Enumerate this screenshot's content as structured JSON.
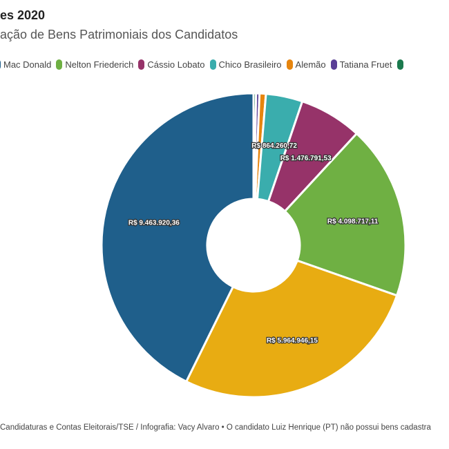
{
  "header": {
    "title": "es 2020",
    "subtitle": "ação de Bens Patrimoniais dos Candidatos"
  },
  "chart_data": {
    "type": "pie",
    "donut": true,
    "title": "es 2020",
    "subtitle": "ação de Bens Patrimoniais dos Candidatos",
    "legend_position": "top",
    "series": [
      {
        "name": "",
        "value": 60000,
        "color": "#1b7a4e",
        "label": ""
      },
      {
        "name": "Tatiana Fruet",
        "value": 80000,
        "color": "#5a3f96",
        "label": ""
      },
      {
        "name": "Alemão",
        "value": 150000,
        "color": "#e6850e",
        "label": ""
      },
      {
        "name": "Chico Brasileiro",
        "value": 864260.72,
        "color": "#3aadad",
        "label": "R$ 864.260,72"
      },
      {
        "name": "Cássio Lobato",
        "value": 1476791.53,
        "color": "#963369",
        "label": "R$ 1.476.791,53"
      },
      {
        "name": "Nelton Friederich",
        "value": 4098717.11,
        "color": "#6fb043",
        "label": "R$ 4.098.717,11"
      },
      {
        "name": "",
        "value": 5964946.15,
        "color": "#e8ac12",
        "label": "R$ 5.964.946,15"
      },
      {
        "name": "Mac Donald",
        "value": 9463920.36,
        "color": "#1f5f8b",
        "label": "R$ 9.463.920,36"
      }
    ],
    "legend_order": [
      7,
      5,
      4,
      3,
      2,
      1,
      0
    ]
  },
  "footer": {
    "source": "Candidaturas e Contas Eleitorais/TSE / Infografia: Vacy Alvaro • O candidato Luiz Henrique (PT) não possui bens cadastra"
  }
}
